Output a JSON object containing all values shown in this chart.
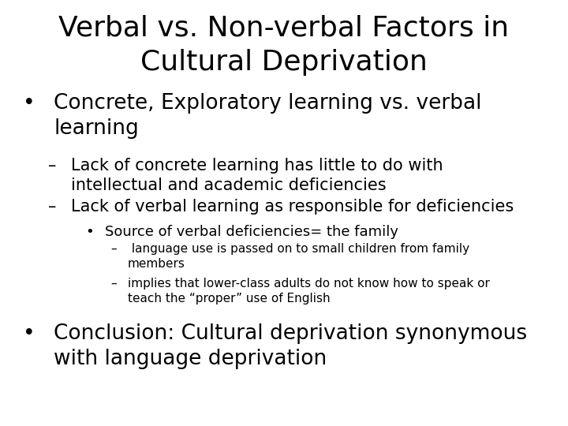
{
  "title_line1": "Verbal vs. Non-verbal Factors in",
  "title_line2": "Cultural Deprivation",
  "background_color": "#ffffff",
  "text_color": "#000000",
  "title_fontsize": 26,
  "body_fontsize_l1": 19,
  "body_fontsize_l2": 15,
  "body_fontsize_l3": 13,
  "body_fontsize_l4": 11,
  "font_family": "DejaVu Sans",
  "items": [
    {
      "bullet": "•",
      "indent": 0.04,
      "text_indent": 0.095,
      "text": "Concrete, Exploratory learning vs. verbal\nlearning",
      "level": 1
    },
    {
      "bullet": "–",
      "indent": 0.085,
      "text_indent": 0.125,
      "text": "Lack of concrete learning has little to do with\nintellectual and academic deficiencies",
      "level": 2
    },
    {
      "bullet": "–",
      "indent": 0.085,
      "text_indent": 0.125,
      "text": "Lack of verbal learning as responsible for deficiencies",
      "level": 2
    },
    {
      "bullet": "•",
      "indent": 0.15,
      "text_indent": 0.185,
      "text": "Source of verbal deficiencies= the family",
      "level": 3
    },
    {
      "bullet": "–",
      "indent": 0.195,
      "text_indent": 0.225,
      "text": " language use is passed on to small children from family\nmembers",
      "level": 4
    },
    {
      "bullet": "–",
      "indent": 0.195,
      "text_indent": 0.225,
      "text": "implies that lower-class adults do not know how to speak or\nteach the “proper” use of English",
      "level": 4
    },
    {
      "bullet": "•",
      "indent": 0.04,
      "text_indent": 0.095,
      "text": "Conclusion: Cultural deprivation synonymous\nwith language deprivation",
      "level": 1
    }
  ]
}
